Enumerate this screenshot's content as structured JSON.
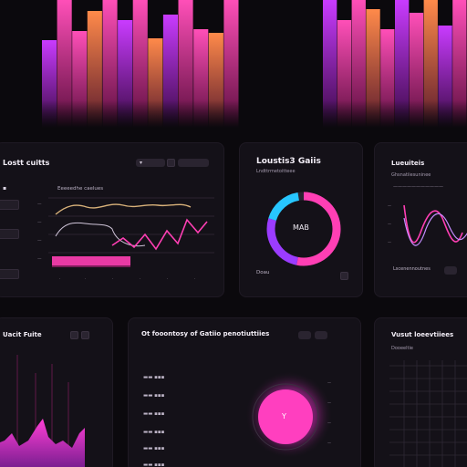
{
  "colors": {
    "background": "#0b090d",
    "panel": "#141118",
    "accent_pink": "#ff3fb4",
    "accent_magenta": "#d12fff",
    "accent_orange": "#ff7a4a",
    "accent_cyan": "#27c6ff"
  },
  "panel_trends": {
    "title": "Lostt cuitts",
    "chips": [
      "",
      ""
    ],
    "subheading": "Eeeeedhe caelues",
    "side_items": [
      "",
      "",
      ""
    ]
  },
  "panel_donut": {
    "title": "Loustis3 Gaiis",
    "subtitle": "Lndttrmetoitteee",
    "center_label": "MAB",
    "footer_label": "Doau"
  },
  "panel_wave": {
    "title": "Lueuiteis",
    "subtitle": "Ghsnatiiesuninee",
    "footer_label": "Lscenennoutnes"
  },
  "panel_levels": {
    "title": "Uacit Fuite"
  },
  "panel_list": {
    "title": "Ot fooontosy of Gatiio penotiuttiies",
    "gauge_label": "Y",
    "rows": [
      "",
      "",
      "",
      "",
      "",
      ""
    ]
  },
  "panel_grid": {
    "title": "Vusut loeevtiiees",
    "subtitle": "Dooeeltie"
  },
  "icons": [
    "chevron-down-icon",
    "calendar-icon",
    "close-icon",
    "more-icon"
  ]
}
